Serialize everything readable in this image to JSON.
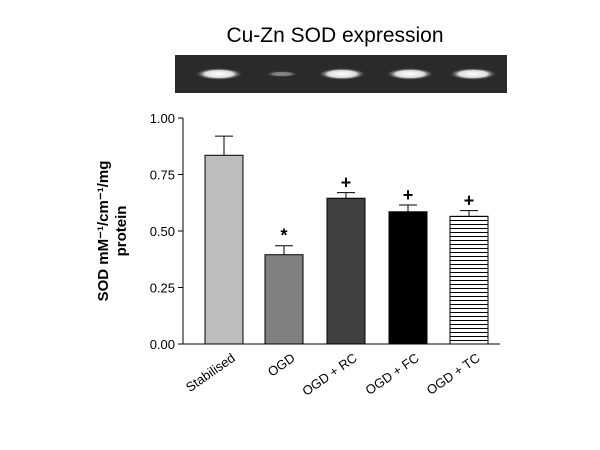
{
  "chart_data": {
    "type": "bar",
    "title": "Cu-Zn SOD expression",
    "ylabel_lines": [
      "SOD mM⁻¹/cm⁻¹/mg",
      "protein"
    ],
    "categories": [
      "Stabilised",
      "OGD",
      "OGD + RC",
      "OGD + FC",
      "OGD + TC"
    ],
    "values": [
      0.835,
      0.395,
      0.645,
      0.585,
      0.565
    ],
    "errors": [
      0.085,
      0.04,
      0.025,
      0.03,
      0.025
    ],
    "annotations": [
      null,
      "*",
      "+",
      "+",
      "+"
    ],
    "colors": [
      "#bdbdbd",
      "#808080",
      "#404040",
      "#000000",
      "#ffffff"
    ],
    "hatch": [
      false,
      false,
      false,
      false,
      true
    ],
    "ylim": [
      0,
      1
    ],
    "yticks": [
      {
        "value": 0,
        "label": "0.00"
      },
      {
        "value": 0.25,
        "label": "0.25"
      },
      {
        "value": 0.5,
        "label": "0.50"
      },
      {
        "value": 0.75,
        "label": "0.75"
      },
      {
        "value": 1,
        "label": "1.00"
      }
    ]
  }
}
